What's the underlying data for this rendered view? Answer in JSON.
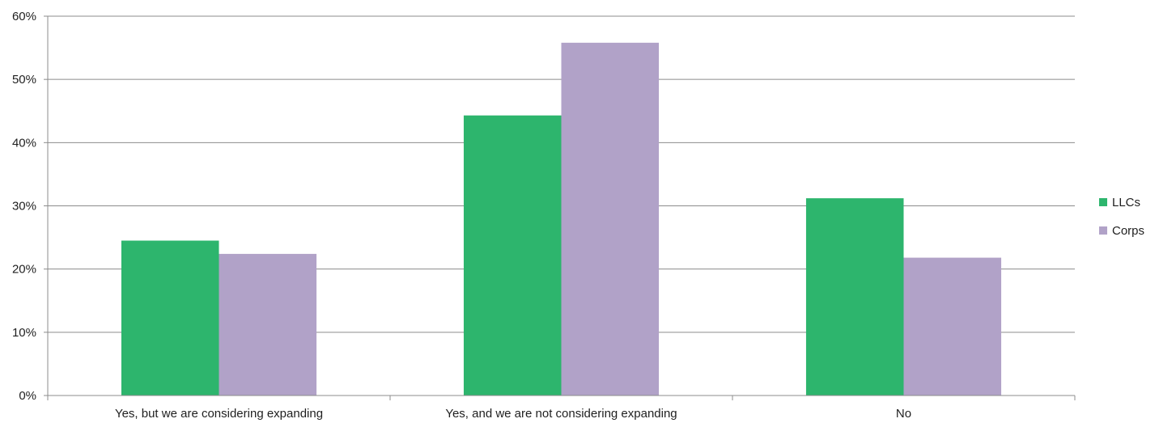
{
  "chart_data": {
    "type": "bar",
    "categories": [
      "Yes, but we are considering expanding",
      "Yes, and we are not considering expanding",
      "No"
    ],
    "series": [
      {
        "name": "LLCs",
        "values": [
          24.5,
          44.3,
          31.2
        ],
        "color": "#2db56d"
      },
      {
        "name": "Corps",
        "values": [
          22.4,
          55.8,
          21.8
        ],
        "color": "#b1a2c8"
      }
    ],
    "ylim": [
      0,
      60
    ],
    "yticks": [
      0,
      10,
      20,
      30,
      40,
      50,
      60
    ],
    "ytick_labels": [
      "0%",
      "10%",
      "20%",
      "30%",
      "40%",
      "50%",
      "60%"
    ],
    "grid": true,
    "legend": "right"
  }
}
